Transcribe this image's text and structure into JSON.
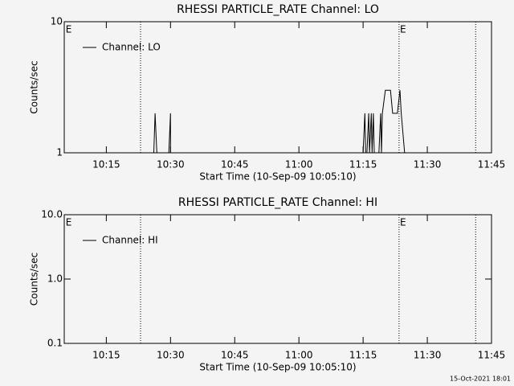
{
  "chart_data": [
    {
      "type": "line",
      "title": "RHESSI PARTICLE_RATE Channel: LO",
      "xlabel": "Start Time (10-Sep-09 10:05:10)",
      "ylabel": "Counts/sec",
      "log_y": true,
      "ylim": [
        1,
        10
      ],
      "yticks": [
        1,
        10
      ],
      "xlim": [
        605.17,
        705
      ],
      "xticks": [
        {
          "value": 615,
          "label": "10:15"
        },
        {
          "value": 630,
          "label": "10:30"
        },
        {
          "value": 645,
          "label": "10:45"
        },
        {
          "value": 660,
          "label": "11:00"
        },
        {
          "value": 675,
          "label": "11:15"
        },
        {
          "value": 690,
          "label": "11:30"
        },
        {
          "value": 705,
          "label": "11:45"
        }
      ],
      "vlines": [
        623.0,
        683.4,
        701.3
      ],
      "annotations": [
        {
          "text": "E",
          "x": 605.5
        },
        {
          "text": "E",
          "x": 683.6
        }
      ],
      "x": [
        605.2,
        626.1,
        626.4,
        626.8,
        629.6,
        630.0,
        630.0,
        675.0,
        675.4,
        675.6,
        675.9,
        676.3,
        676.5,
        676.9,
        677.1,
        677.4,
        677.6,
        678.7,
        679.1,
        679.3,
        679.5,
        680.2,
        681.4,
        681.9,
        683.0,
        683.6,
        683.9,
        684.7,
        704.6
      ],
      "series": [
        {
          "name": "Channel: LO",
          "color": "#000000",
          "values": [
            1,
            1,
            2,
            1,
            1,
            2,
            1,
            1,
            2,
            1,
            1,
            2,
            1,
            2,
            1,
            2,
            1,
            1,
            2,
            1,
            2,
            3,
            3,
            2,
            2,
            3,
            2,
            1,
            1
          ]
        }
      ]
    },
    {
      "type": "line",
      "title": "RHESSI PARTICLE_RATE Channel: HI",
      "xlabel": "Start Time (10-Sep-09 10:05:10)",
      "ylabel": "Counts/sec",
      "log_y": true,
      "ylim": [
        0.1,
        10
      ],
      "yticks": [
        0.1,
        {
          "value": 1,
          "label": "1.0"
        },
        {
          "value": 10,
          "label": "10.0"
        }
      ],
      "xlim": [
        605.17,
        705
      ],
      "xticks": [
        {
          "value": 615,
          "label": "10:15"
        },
        {
          "value": 630,
          "label": "10:30"
        },
        {
          "value": 645,
          "label": "10:45"
        },
        {
          "value": 660,
          "label": "11:00"
        },
        {
          "value": 675,
          "label": "11:15"
        },
        {
          "value": 690,
          "label": "11:30"
        },
        {
          "value": 705,
          "label": "11:45"
        }
      ],
      "vlines": [
        623.0,
        683.4,
        701.3
      ],
      "annotations": [
        {
          "text": "E",
          "x": 605.5
        },
        {
          "text": "E",
          "x": 683.6
        }
      ],
      "x": [],
      "series": [
        {
          "name": "Channel: HI",
          "color": "#000000",
          "values": []
        }
      ]
    }
  ],
  "footer": "15-Oct-2021 18:01"
}
